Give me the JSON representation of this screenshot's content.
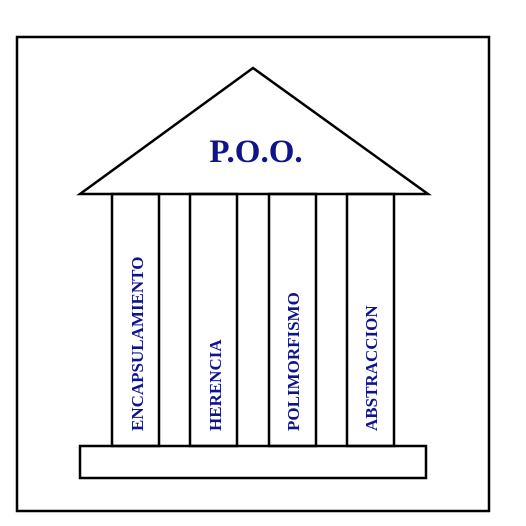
{
  "diagram": {
    "title": "P.O.O.",
    "pillars": [
      {
        "label": "ENCAPSULAMIENTO"
      },
      {
        "label": "HERENCIA"
      },
      {
        "label": "POLIMORFISMO"
      },
      {
        "label": "ABSTRACCION"
      }
    ]
  },
  "colors": {
    "text": "#10148c",
    "line": "#000000",
    "background": "#ffffff"
  }
}
